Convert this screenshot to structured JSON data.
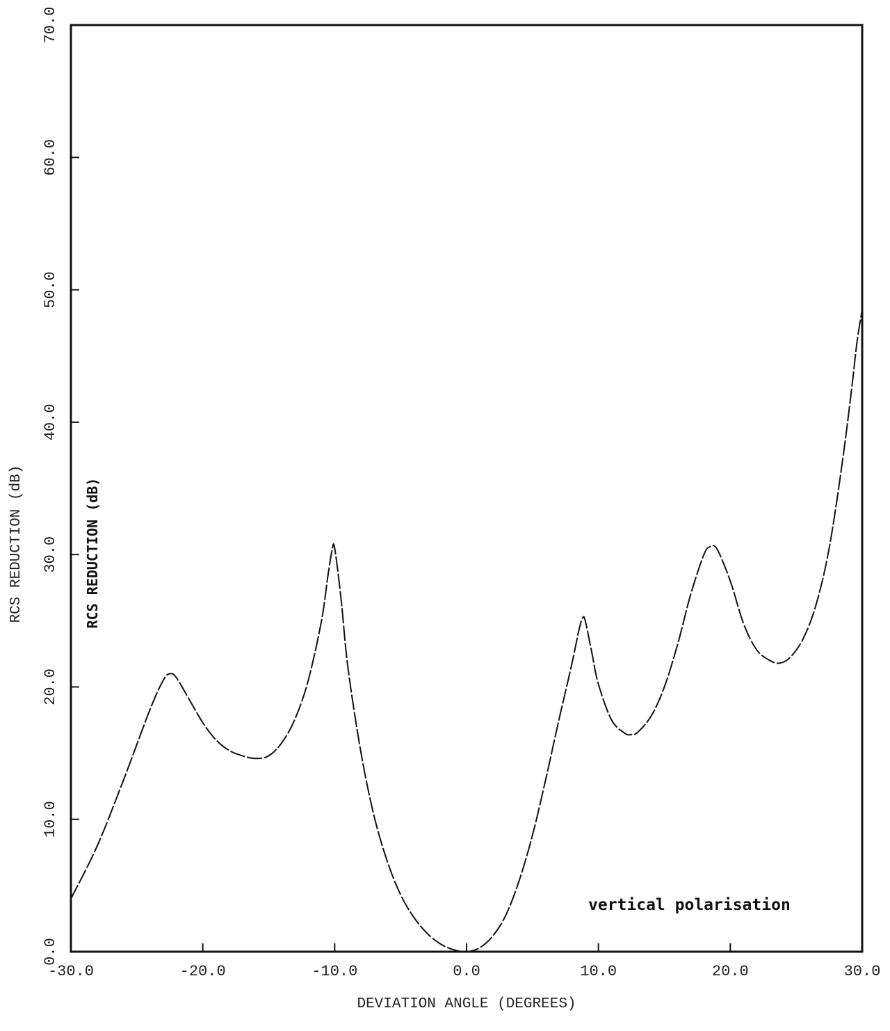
{
  "chart_data": {
    "type": "line",
    "title": "",
    "xlabel": "DEVIATION ANGLE (DEGREES)",
    "ylabel": "RCS REDUCTION (dB)",
    "ylabel_inner": "RCS REDUCTION (dB)",
    "annotation": "vertical polarisation",
    "xlim": [
      -30,
      30
    ],
    "ylim": [
      0,
      70
    ],
    "x_ticks": [
      -30,
      -20,
      -10,
      0,
      10,
      20,
      30
    ],
    "y_ticks": [
      0,
      10,
      20,
      30,
      40,
      50,
      60,
      70
    ],
    "x_tick_labels": [
      "-30.0",
      "-20.0",
      "-10.0",
      "0.0",
      "10.0",
      "20.0",
      "30.0"
    ],
    "y_tick_labels": [
      "0.0",
      "10.0",
      "20.0",
      "30.0",
      "40.0",
      "50.0",
      "60.0",
      "70.0"
    ],
    "grid": false,
    "line_color": "#111111",
    "series": [
      {
        "x": [
          -30.0,
          -28.0,
          -26.0,
          -24.0,
          -23.0,
          -22.5,
          -22.0,
          -21.0,
          -20.0,
          -19.0,
          -18.0,
          -17.0,
          -16.0,
          -15.0,
          -14.0,
          -13.0,
          -12.0,
          -11.0,
          -10.5,
          -10.2,
          -10.0,
          -9.5,
          -9.0,
          -8.0,
          -7.0,
          -6.0,
          -5.0,
          -4.0,
          -3.0,
          -2.0,
          -1.0,
          0.0,
          1.0,
          2.0,
          3.0,
          4.0,
          5.0,
          6.0,
          7.0,
          8.0,
          8.5,
          8.8,
          9.0,
          9.5,
          10.0,
          11.0,
          12.0,
          12.5,
          13.0,
          14.0,
          15.0,
          16.0,
          17.0,
          18.0,
          18.5,
          19.0,
          20.0,
          21.0,
          22.0,
          23.0,
          23.7,
          24.5,
          25.5,
          26.5,
          27.5,
          28.5,
          29.2,
          29.6,
          30.0
        ],
        "y": [
          4.0,
          8.0,
          13.0,
          18.3,
          20.5,
          21.0,
          20.7,
          19.0,
          17.3,
          16.0,
          15.2,
          14.8,
          14.6,
          14.8,
          15.8,
          17.6,
          20.5,
          25.0,
          28.5,
          30.3,
          30.5,
          26.5,
          21.5,
          15.0,
          10.2,
          6.8,
          4.3,
          2.6,
          1.4,
          0.6,
          0.15,
          0.0,
          0.3,
          1.2,
          2.8,
          5.4,
          8.8,
          13.0,
          17.5,
          21.8,
          24.2,
          25.2,
          25.0,
          22.6,
          20.2,
          17.5,
          16.5,
          16.4,
          16.6,
          17.8,
          20.0,
          23.2,
          27.0,
          30.0,
          30.6,
          30.4,
          28.0,
          24.8,
          22.8,
          22.0,
          21.8,
          22.2,
          23.6,
          26.2,
          30.5,
          37.0,
          42.5,
          46.0,
          48.5
        ]
      }
    ]
  }
}
